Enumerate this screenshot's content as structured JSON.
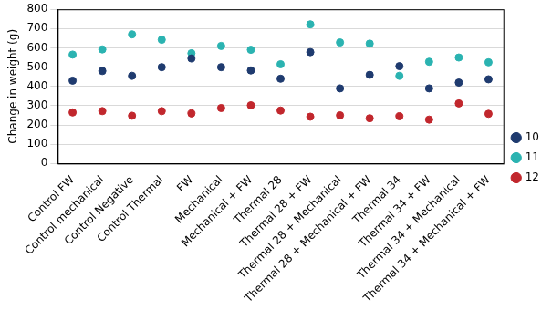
{
  "chart_data": {
    "type": "scatter",
    "y_label": "Change in weight (g)",
    "categories": [
      "Control FW",
      "Control mechanical",
      "Control Negative",
      "Control Thermal",
      "FW",
      "Mechanical",
      "Mechanical + FW",
      "Thermal 28",
      "Thermal 28 + FW",
      "Thermal 28 + Mechanical",
      "Thermal 28 + Mechanical + FW",
      "Thermal 34",
      "Thermal 34 + FW",
      "Thermal 34 + Mechanical",
      "Thermal 34 + Mechanical + FW"
    ],
    "series": [
      {
        "name": "10",
        "color": "#1f3b6f",
        "values": [
          430,
          480,
          455,
          500,
          545,
          500,
          483,
          440,
          578,
          390,
          460,
          505,
          390,
          420,
          437
        ]
      },
      {
        "name": "11",
        "color": "#2bb3b1",
        "values": [
          565,
          592,
          670,
          642,
          572,
          610,
          590,
          515,
          722,
          628,
          622,
          455,
          528,
          550,
          525
        ]
      },
      {
        "name": "12",
        "color": "#c1272d",
        "values": [
          265,
          272,
          248,
          272,
          260,
          288,
          302,
          275,
          243,
          250,
          235,
          245,
          228,
          312,
          258
        ]
      }
    ],
    "ylim": [
      0,
      800
    ],
    "yticks": [
      0,
      100,
      200,
      300,
      400,
      500,
      600,
      700,
      800
    ],
    "grid": true,
    "legend": "right",
    "marker": "circle"
  }
}
